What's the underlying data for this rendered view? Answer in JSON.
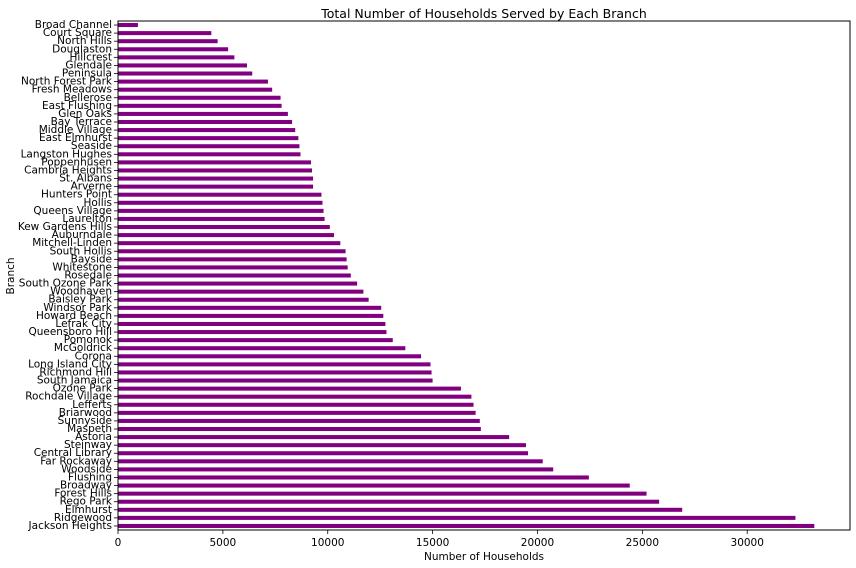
{
  "chart_data": {
    "type": "bar",
    "orientation": "horizontal",
    "title": "Total Number of Households Served by Each Branch",
    "xlabel": "Number of Households",
    "ylabel": "Branch",
    "xlim": [
      0,
      34900
    ],
    "xticks": [
      0,
      5000,
      10000,
      15000,
      20000,
      25000,
      30000
    ],
    "grid": false,
    "bar_color": "#800080",
    "categories": [
      "Broad Channel",
      "Court Square",
      "North Hills",
      "Douglaston",
      "Hillcrest",
      "Glendale",
      "Peninsula",
      "North Forest Park",
      "Fresh Meadows",
      "Bellerose",
      "East Flushing",
      "Glen Oaks",
      "Bay Terrace",
      "Middle Village",
      "East Elmhurst",
      "Seaside",
      "Langston Hughes",
      "Poppenhusen",
      "Cambria Heights",
      "St. Albans",
      "Arverne",
      "Hunters Point",
      "Hollis",
      "Queens Village",
      "Laurelton",
      "Kew Gardens Hills",
      "Auburndale",
      "Mitchell-Linden",
      "South Hollis",
      "Bayside",
      "Whitestone",
      "Rosedale",
      "South Ozone Park",
      "Woodhaven",
      "Baisley Park",
      "Windsor Park",
      "Howard Beach",
      "Lefrak City",
      "Queensboro Hill",
      "Pomonok",
      "McGoldrick",
      "Corona",
      "Long Island City",
      "Richmond Hill",
      "South Jamaica",
      "Ozone Park",
      "Rochdale Village",
      "Lefferts",
      "Briarwood",
      "Sunnyside",
      "Maspeth",
      "Astoria",
      "Steinway",
      "Central Library",
      "Far Rockaway",
      "Woodside",
      "Flushing",
      "Broadway",
      "Forest Hills",
      "Rego Park",
      "Elmhurst",
      "Ridgewood",
      "Jackson Heights"
    ],
    "values": [
      950,
      4450,
      4750,
      5250,
      5550,
      6150,
      6400,
      7150,
      7350,
      7750,
      7800,
      8100,
      8300,
      8450,
      8600,
      8650,
      8700,
      9200,
      9250,
      9300,
      9300,
      9700,
      9750,
      9800,
      9850,
      10100,
      10300,
      10600,
      10850,
      10900,
      10950,
      11100,
      11400,
      11700,
      11950,
      12550,
      12650,
      12750,
      12800,
      13100,
      13700,
      14450,
      14900,
      14950,
      15000,
      16350,
      16850,
      16950,
      17050,
      17250,
      17300,
      18650,
      19450,
      19550,
      20250,
      20750,
      22450,
      24400,
      25200,
      25800,
      26900,
      32300,
      33200
    ]
  }
}
